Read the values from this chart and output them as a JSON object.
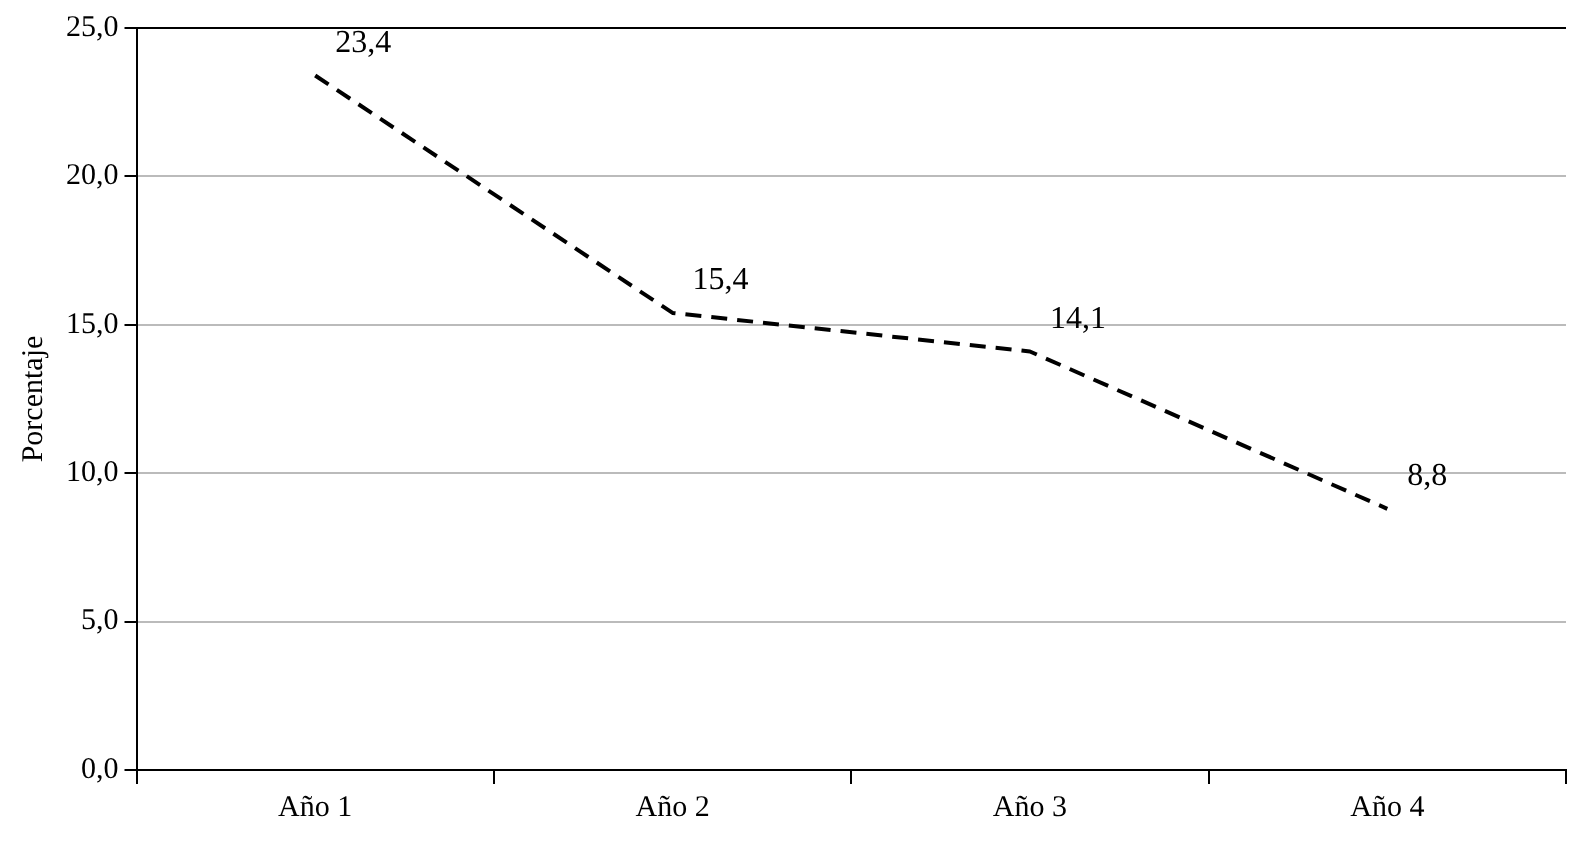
{
  "chart_data": {
    "type": "line",
    "ylabel": "Porcentaje",
    "categories": [
      "Año 1",
      "Año 2",
      "Año 3",
      "Año 4"
    ],
    "series": [
      {
        "color": "#000000",
        "values": [
          23.4,
          15.4,
          14.1,
          8.8
        ],
        "value_labels": [
          "23,4",
          "15,4",
          "14,1",
          "8,8"
        ]
      }
    ],
    "ylim": [
      0,
      25
    ],
    "yticks": [
      {
        "value": 0,
        "label": "0,0"
      },
      {
        "value": 5,
        "label": "5,0"
      },
      {
        "value": 10,
        "label": "10,0"
      },
      {
        "value": 15,
        "label": "15,0"
      },
      {
        "value": 20,
        "label": "20,0"
      },
      {
        "value": 25,
        "label": "25,0"
      }
    ],
    "grid": "y",
    "legend": false,
    "marker": "none",
    "line_style": "dashed"
  }
}
